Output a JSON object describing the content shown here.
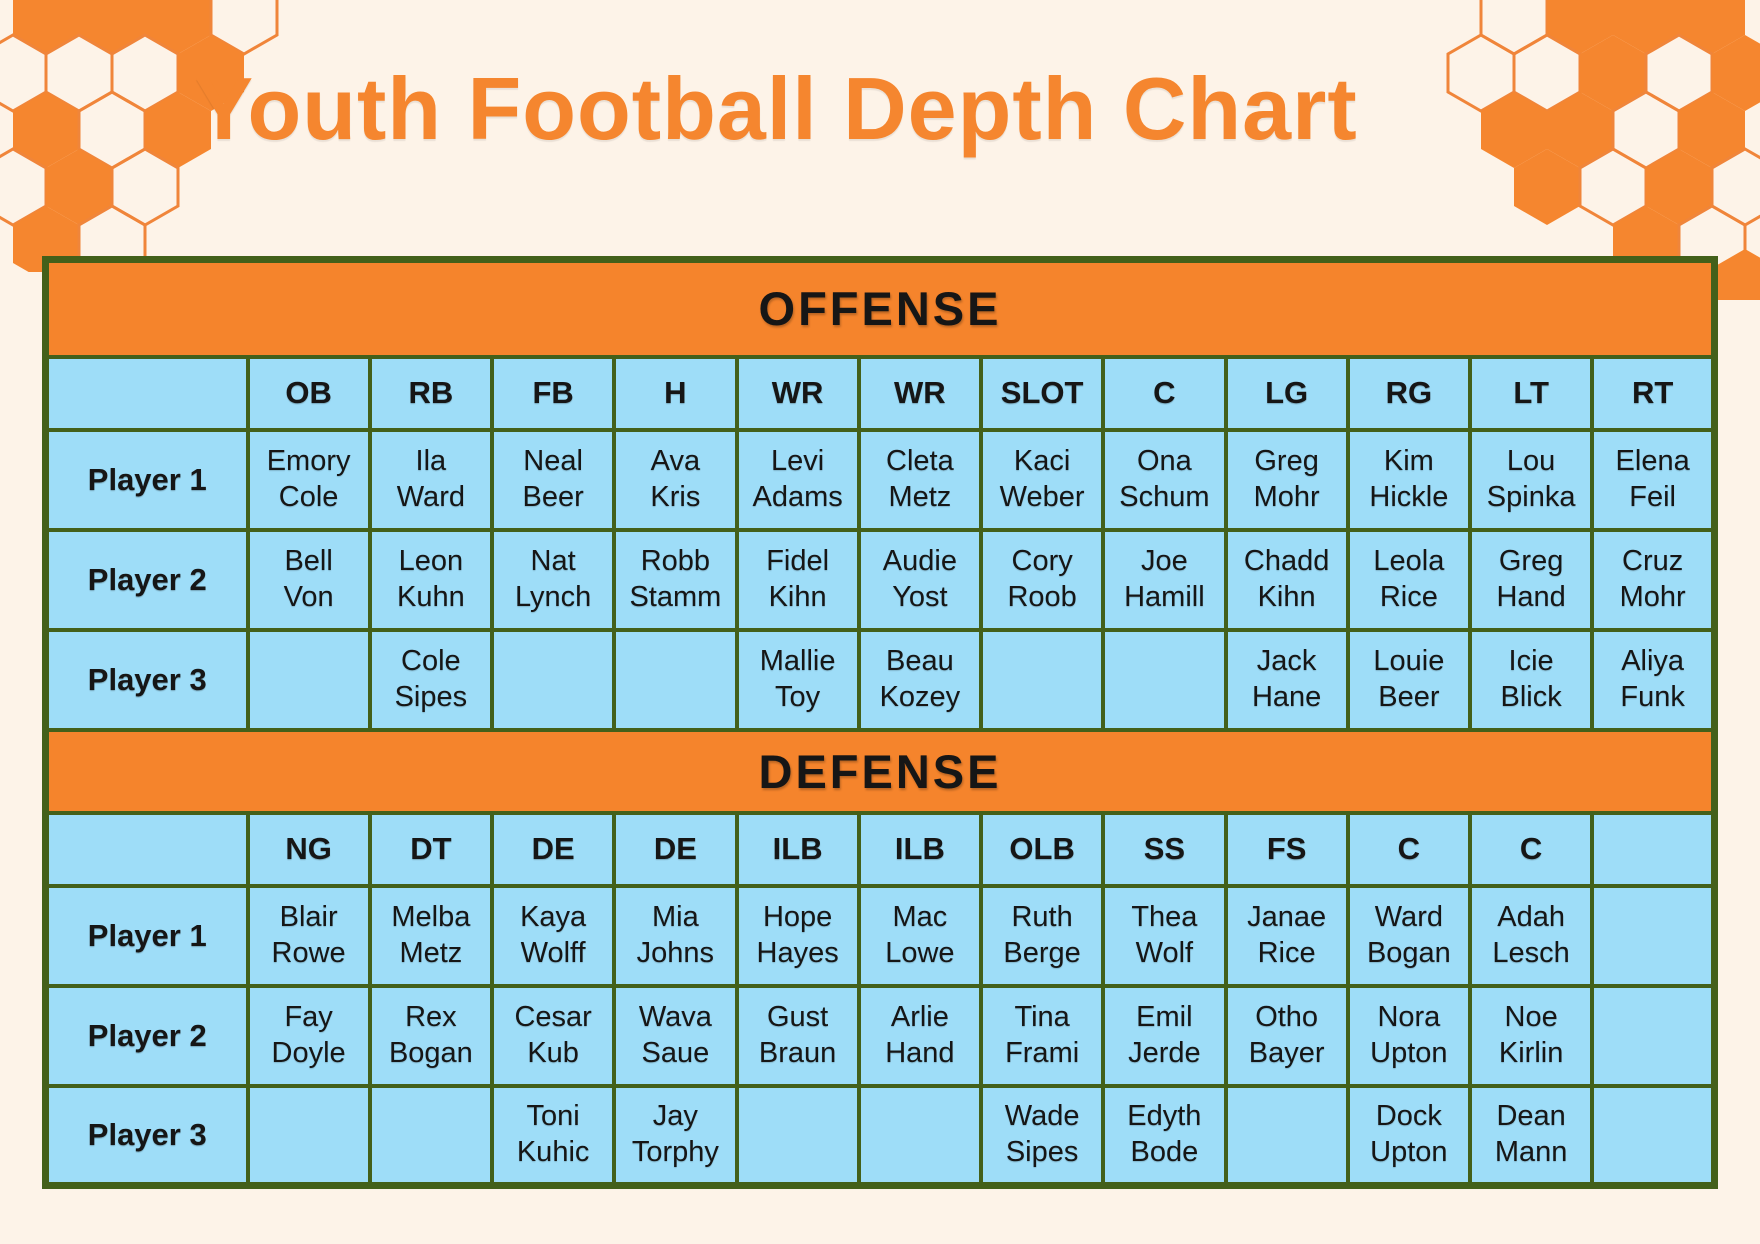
{
  "page": {
    "title": "Youth Football Depth Chart",
    "colors": {
      "background": "#FDF3E8",
      "accent_orange": "#F5862F",
      "banner_orange": "#F5842C",
      "cell_blue": "#9EDDF8",
      "border_green": "#43601A",
      "banner_text": "#FFFFFF",
      "cell_text": "#161616"
    }
  },
  "sections": [
    {
      "name": "OFFENSE",
      "positions": [
        "OB",
        "RB",
        "FB",
        "H",
        "WR",
        "WR",
        "SLOT",
        "C",
        "LG",
        "RG",
        "LT",
        "RT"
      ],
      "rows": [
        {
          "label": "Player 1",
          "players": [
            "Emory Cole",
            "Ila Ward",
            "Neal Beer",
            "Ava Kris",
            "Levi Adams",
            "Cleta Metz",
            "Kaci Weber",
            "Ona Schum",
            "Greg Mohr",
            "Kim Hickle",
            "Lou Spinka",
            "Elena Feil"
          ]
        },
        {
          "label": "Player 2",
          "players": [
            "Bell Von",
            "Leon Kuhn",
            "Nat Lynch",
            "Robb Stamm",
            "Fidel Kihn",
            "Audie Yost",
            "Cory Roob",
            "Joe Hamill",
            "Chadd Kihn",
            "Leola Rice",
            "Greg Hand",
            "Cruz Mohr"
          ]
        },
        {
          "label": "Player 3",
          "players": [
            "",
            "Cole Sipes",
            "",
            "",
            "Mallie Toy",
            "Beau Kozey",
            "",
            "",
            "Jack Hane",
            "Louie Beer",
            "Icie Blick",
            "Aliya Funk"
          ]
        }
      ]
    },
    {
      "name": "DEFENSE",
      "positions": [
        "NG",
        "DT",
        "DE",
        "DE",
        "ILB",
        "ILB",
        "OLB",
        "SS",
        "FS",
        "C",
        "C",
        ""
      ],
      "rows": [
        {
          "label": "Player 1",
          "players": [
            "Blair Rowe",
            "Melba Metz",
            "Kaya Wolff",
            "Mia Johns",
            "Hope Hayes",
            "Mac Lowe",
            "Ruth Berge",
            "Thea Wolf",
            "Janae Rice",
            "Ward Bogan",
            "Adah Lesch",
            ""
          ]
        },
        {
          "label": "Player 2",
          "players": [
            "Fay Doyle",
            "Rex Bogan",
            "Cesar Kub",
            "Wava Saue",
            "Gust Braun",
            "Arlie Hand",
            "Tina Frami",
            "Emil Jerde",
            "Otho Bayer",
            "Nora Upton",
            "Noe Kirlin",
            ""
          ]
        },
        {
          "label": "Player 3",
          "players": [
            "",
            "",
            "Toni Kuhic",
            "Jay Torphy",
            "",
            "",
            "Wade Sipes",
            "Edyth Bode",
            "",
            "Dock Upton",
            "Dean Mann",
            ""
          ]
        }
      ]
    }
  ]
}
